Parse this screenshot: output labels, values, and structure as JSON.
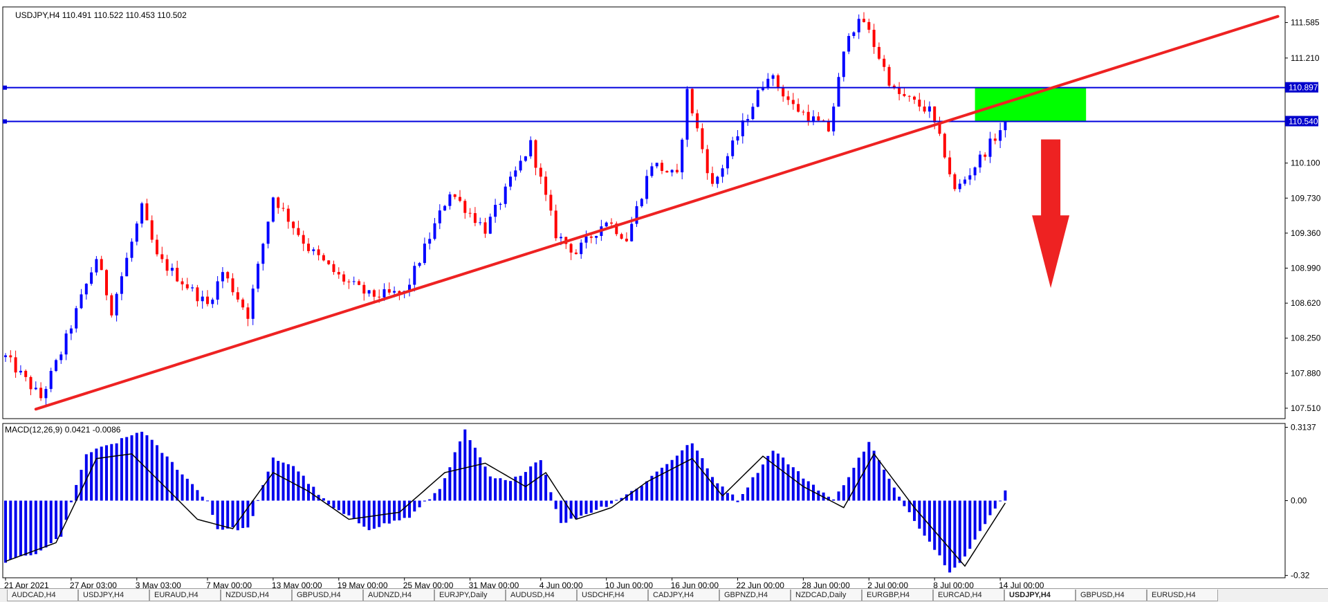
{
  "window": {
    "symbol_info": "USDJPY,H4  110.491 110.522 110.453 110.502",
    "indicator_info": "MACD(12,26,9) 0.0421 -0.0086"
  },
  "price_axis": {
    "ticks": [
      "111.585",
      "111.210",
      "110.100",
      "109.730",
      "109.360",
      "108.990",
      "108.620",
      "108.250",
      "107.880",
      "107.510"
    ],
    "tick_values": [
      111.585,
      111.21,
      110.1,
      109.73,
      109.36,
      108.99,
      108.62,
      108.25,
      107.88,
      107.51
    ],
    "hline_labels": [
      "110.897",
      "110.540"
    ],
    "hline_values": [
      110.897,
      110.54
    ]
  },
  "macd_axis": {
    "ticks": [
      "0.3137",
      "0.00",
      "-0.32"
    ],
    "tick_values": [
      0.3137,
      0.0,
      -0.32
    ]
  },
  "time_axis": {
    "labels": [
      "21 Apr 2021",
      "27 Apr 03:00",
      "3 May 03:00",
      "7 May 00:00",
      "13 May 00:00",
      "19 May 00:00",
      "25 May 00:00",
      "31 May 00:00",
      "4 Jun 00:00",
      "10 Jun 00:00",
      "16 Jun 00:00",
      "22 Jun 00:00",
      "28 Jun 00:00",
      "2 Jul 00:00",
      "8 Jul 00:00",
      "14 Jul 00:00"
    ],
    "bar_index": [
      0,
      13,
      26,
      40,
      53,
      66,
      79,
      92,
      106,
      119,
      132,
      145,
      158,
      171,
      184,
      197
    ]
  },
  "colors": {
    "bull": "#0000ff",
    "bear": "#ff0000",
    "trendline": "#ee2222",
    "hline": "#0000dd",
    "zone": "#00ff00",
    "arrow": "#ee2222",
    "macd_hist": "#0000ee",
    "macd_signal": "#000000",
    "label_bg": "#0000cc",
    "label_fg": "#ffffff"
  },
  "annotations": {
    "trendline": {
      "from": {
        "bar": 6,
        "price": 107.5
      },
      "to": {
        "bar": 252,
        "price": 111.65
      }
    },
    "zone": {
      "from_bar": 192,
      "to_bar": 214,
      "top": 110.897,
      "bottom": 110.54
    },
    "down_arrow": {
      "bar": 207,
      "from_price": 110.35,
      "to_price": 108.78
    }
  },
  "chart_data": {
    "type": "candlestick",
    "title": "USDJPY,H4",
    "series": [
      {
        "name": "USDJPY",
        "anchors": [
          [
            0,
            108.05
          ],
          [
            7,
            107.62
          ],
          [
            11,
            108.1
          ],
          [
            18,
            109.1
          ],
          [
            21,
            108.55
          ],
          [
            27,
            109.62
          ],
          [
            30,
            109.1
          ],
          [
            40,
            108.6
          ],
          [
            43,
            108.95
          ],
          [
            48,
            108.5
          ],
          [
            53,
            109.75
          ],
          [
            60,
            109.2
          ],
          [
            66,
            108.9
          ],
          [
            72,
            108.7
          ],
          [
            79,
            108.72
          ],
          [
            88,
            109.8
          ],
          [
            95,
            109.4
          ],
          [
            104,
            110.3
          ],
          [
            109,
            109.35
          ],
          [
            113,
            109.15
          ],
          [
            119,
            109.5
          ],
          [
            123,
            109.3
          ],
          [
            128,
            110.1
          ],
          [
            133,
            109.95
          ],
          [
            135,
            110.85
          ],
          [
            140,
            109.85
          ],
          [
            146,
            110.5
          ],
          [
            151,
            111.05
          ],
          [
            156,
            110.7
          ],
          [
            163,
            110.45
          ],
          [
            167,
            111.5
          ],
          [
            170,
            111.6
          ],
          [
            176,
            110.85
          ],
          [
            183,
            110.65
          ],
          [
            186,
            110.2
          ],
          [
            188,
            109.8
          ],
          [
            191,
            110.0
          ],
          [
            197,
            110.45
          ],
          [
            198,
            110.5
          ]
        ]
      },
      {
        "name": "MACD(12,26,9)",
        "hist_anchors": [
          [
            0,
            -0.26
          ],
          [
            7,
            -0.22
          ],
          [
            11,
            -0.15
          ],
          [
            16,
            0.2
          ],
          [
            22,
            0.25
          ],
          [
            27,
            0.3
          ],
          [
            40,
            0.0
          ],
          [
            42,
            -0.12
          ],
          [
            48,
            -0.12
          ],
          [
            53,
            0.18
          ],
          [
            57,
            0.15
          ],
          [
            64,
            -0.02
          ],
          [
            72,
            -0.12
          ],
          [
            80,
            -0.07
          ],
          [
            86,
            0.05
          ],
          [
            91,
            0.3
          ],
          [
            96,
            0.1
          ],
          [
            100,
            0.08
          ],
          [
            106,
            0.18
          ],
          [
            110,
            -0.1
          ],
          [
            119,
            -0.02
          ],
          [
            125,
            0.05
          ],
          [
            136,
            0.25
          ],
          [
            140,
            0.1
          ],
          [
            145,
            0.0
          ],
          [
            152,
            0.22
          ],
          [
            158,
            0.1
          ],
          [
            164,
            0.0
          ],
          [
            171,
            0.25
          ],
          [
            176,
            0.05
          ],
          [
            179,
            -0.05
          ],
          [
            187,
            -0.3
          ],
          [
            190,
            -0.24
          ],
          [
            196,
            -0.03
          ],
          [
            198,
            0.04
          ]
        ],
        "signal_anchors": [
          [
            0,
            -0.26
          ],
          [
            10,
            -0.18
          ],
          [
            18,
            0.18
          ],
          [
            25,
            0.2
          ],
          [
            32,
            0.05
          ],
          [
            38,
            -0.08
          ],
          [
            45,
            -0.12
          ],
          [
            53,
            0.12
          ],
          [
            60,
            0.04
          ],
          [
            68,
            -0.08
          ],
          [
            78,
            -0.05
          ],
          [
            87,
            0.12
          ],
          [
            95,
            0.16
          ],
          [
            103,
            0.06
          ],
          [
            107,
            0.12
          ],
          [
            113,
            -0.08
          ],
          [
            120,
            -0.03
          ],
          [
            127,
            0.08
          ],
          [
            136,
            0.18
          ],
          [
            142,
            0.02
          ],
          [
            150,
            0.19
          ],
          [
            158,
            0.06
          ],
          [
            166,
            -0.03
          ],
          [
            172,
            0.2
          ],
          [
            180,
            -0.03
          ],
          [
            190,
            -0.28
          ],
          [
            198,
            -0.01
          ]
        ]
      }
    ],
    "ylim": [
      107.4,
      111.75
    ],
    "macd_ylim": [
      -0.33,
      0.33
    ]
  },
  "bottom_tabs": [
    {
      "label": "AUDCAD,H4",
      "active": false
    },
    {
      "label": "USDJPY,H4",
      "active": false
    },
    {
      "label": "EURAUD,H4",
      "active": false
    },
    {
      "label": "NZDUSD,H4",
      "active": false
    },
    {
      "label": "GBPUSD,H4",
      "active": false
    },
    {
      "label": "AUDNZD,H4",
      "active": false
    },
    {
      "label": "EURJPY,Daily",
      "active": false
    },
    {
      "label": "AUDUSD,H4",
      "active": false
    },
    {
      "label": "USDCHF,H4",
      "active": false
    },
    {
      "label": "CADJPY,H4",
      "active": false
    },
    {
      "label": "GBPNZD,H4",
      "active": false
    },
    {
      "label": "NZDCAD,Daily",
      "active": false
    },
    {
      "label": "EURGBP,H4",
      "active": false
    },
    {
      "label": "EURCAD,H4",
      "active": false
    },
    {
      "label": "USDJPY,H4",
      "active": true
    },
    {
      "label": "GBPUSD,H4",
      "active": false
    },
    {
      "label": "EURUSD,H4",
      "active": false
    }
  ]
}
